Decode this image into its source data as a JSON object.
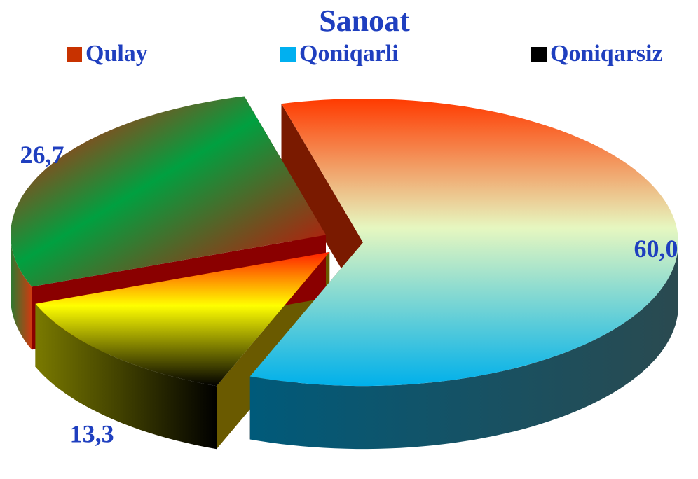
{
  "chart_data": {
    "type": "pie",
    "title": "Sanoat",
    "categories": [
      "Qulay",
      "Qoniqarli",
      "Qoniqarsiz"
    ],
    "values": [
      60,
      26.7,
      13.3
    ],
    "value_labels": [
      "60,0",
      "26,7",
      "13,3"
    ],
    "colors": [
      "#c83200",
      "#00b0f0",
      "#000000"
    ]
  }
}
